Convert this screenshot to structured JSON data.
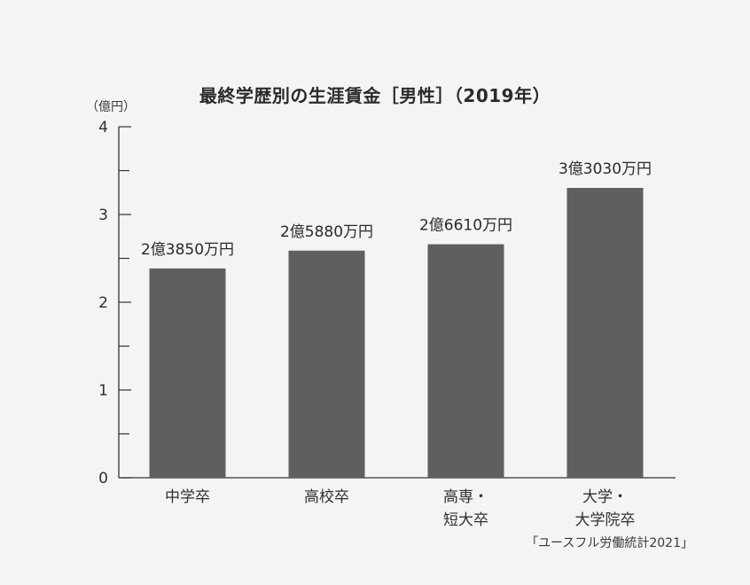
{
  "chart_data": {
    "type": "bar",
    "title": "最終学歴別の生涯賃金［男性］（2019年）",
    "ylabel": "（億円）",
    "ylim": [
      0,
      4
    ],
    "yticks": [
      0,
      1,
      2,
      3,
      4
    ],
    "categories": [
      [
        "中学卒"
      ],
      [
        "高校卒"
      ],
      [
        "高専・",
        "短大卒"
      ],
      [
        "大学・",
        "大学院卒"
      ]
    ],
    "values": [
      2.385,
      2.588,
      2.661,
      3.303
    ],
    "data_labels": [
      "2億3850万円",
      "2億5880万円",
      "2億6610万円",
      "3億3030万円"
    ],
    "grid": false,
    "bar_color": "#5f5f5f"
  },
  "source": "「ユースフル労働統計2021」"
}
